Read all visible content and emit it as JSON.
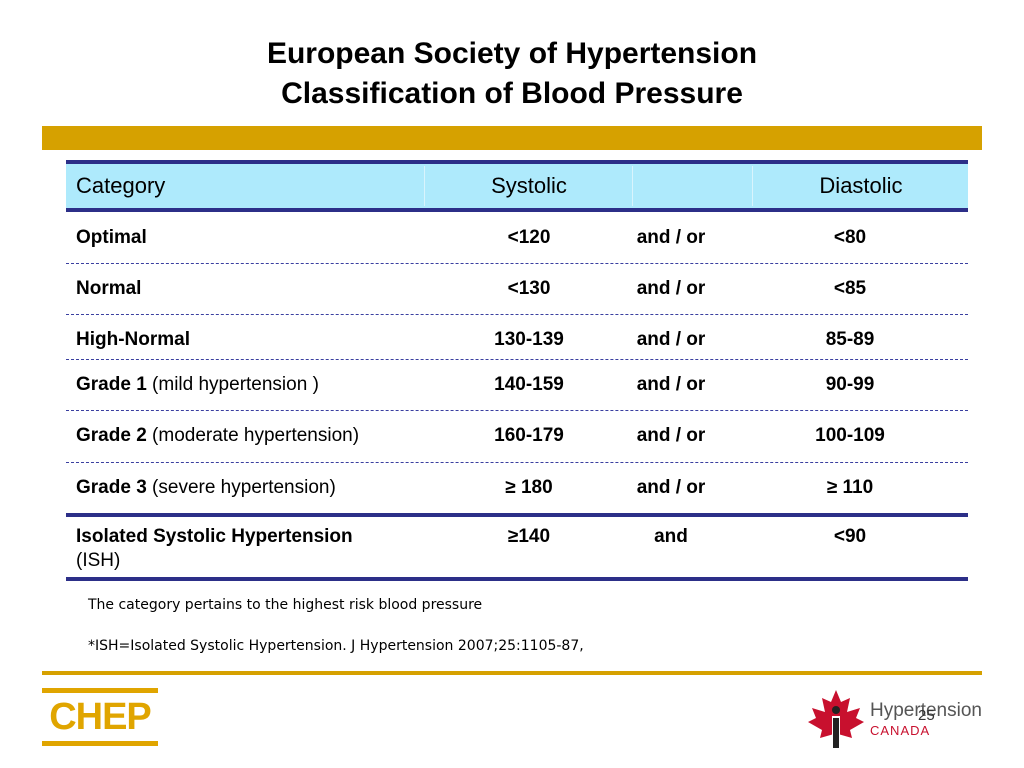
{
  "title": {
    "line1": "European Society of Hypertension",
    "line2": "Classification of Blood Pressure"
  },
  "table": {
    "headers": {
      "category": "Category",
      "systolic": "Systolic",
      "diastolic": "Diastolic"
    },
    "rows": [
      {
        "category": "Optimal",
        "note": "",
        "systolic": "<120",
        "connector": "and / or",
        "diastolic": "<80"
      },
      {
        "category": "Normal",
        "note": "",
        "systolic": "<130",
        "connector": "and / or",
        "diastolic": "<85"
      },
      {
        "category": "High-Normal",
        "note": "",
        "systolic": "130-139",
        "connector": "and / or",
        "diastolic": "85-89"
      },
      {
        "category": "Grade 1",
        "note": "(mild hypertension )",
        "systolic": "140-159",
        "connector": "and / or",
        "diastolic": "90-99"
      },
      {
        "category": "Grade 2",
        "note": "(moderate hypertension)",
        "systolic": "160-179",
        "connector": "and / or",
        "diastolic": "100-109"
      },
      {
        "category": "Grade 3",
        "note": "(severe hypertension)",
        "systolic": "≥ 180",
        "connector": "and / or",
        "diastolic": "≥ 110"
      },
      {
        "category": "Isolated Systolic Hypertension",
        "note": "(ISH)",
        "systolic": "≥140",
        "connector": "and",
        "diastolic": "<90"
      }
    ]
  },
  "notes": {
    "line1": "The category pertains to the highest risk blood pressure",
    "line2": "*ISH=Isolated Systolic Hypertension. J Hypertension 2007;25:1105-87,"
  },
  "footer": {
    "chep_logo": "CHEP",
    "hc_logo_main": "Hypertension",
    "hc_logo_sub": "CANADA",
    "page_number": "25"
  },
  "colors": {
    "gold": "#d6a100",
    "navy": "#2c2f88",
    "header_bg": "#aeeafc",
    "maple_red": "#c8102e"
  }
}
